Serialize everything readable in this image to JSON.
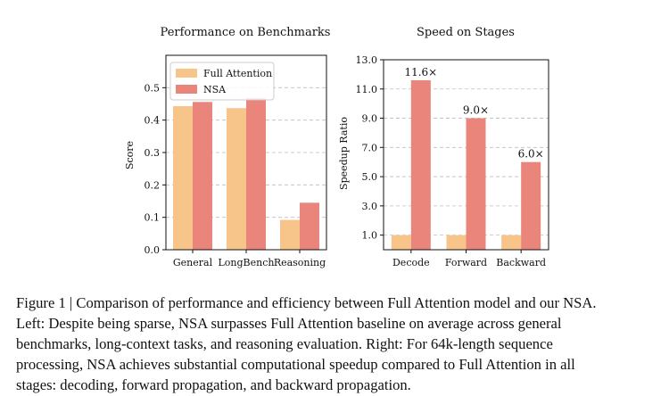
{
  "chart_data": [
    {
      "type": "bar",
      "title": "Performance on Benchmarks",
      "xlabel": "",
      "ylabel": "Score",
      "categories": [
        "General",
        "LongBench",
        "Reasoning"
      ],
      "ylim": [
        0.0,
        0.6
      ],
      "yticks": [
        "0.0",
        "0.1",
        "0.2",
        "0.3",
        "0.4",
        "0.5"
      ],
      "ytick_values": [
        0.0,
        0.1,
        0.2,
        0.3,
        0.4,
        0.5
      ],
      "grid": true,
      "legend_position": "top-left",
      "series": [
        {
          "name": "Full Attention",
          "values": [
            0.443,
            0.437,
            0.092
          ],
          "color": "#F7C48A"
        },
        {
          "name": "NSA",
          "values": [
            0.456,
            0.469,
            0.145
          ],
          "color": "#E9857A"
        }
      ]
    },
    {
      "type": "bar",
      "title": "Speed on Stages",
      "xlabel": "",
      "ylabel": "Speedup Ratio",
      "categories": [
        "Decode",
        "Forward",
        "Backward"
      ],
      "ylim": [
        0.0,
        13.0
      ],
      "yticks": [
        "1.0",
        "3.0",
        "5.0",
        "7.0",
        "9.0",
        "11.0",
        "13.0"
      ],
      "ytick_values": [
        1.0,
        3.0,
        5.0,
        7.0,
        9.0,
        11.0,
        13.0
      ],
      "grid": true,
      "series": [
        {
          "name": "Full Attention",
          "values": [
            1.0,
            1.0,
            1.0
          ],
          "color": "#F7C48A"
        },
        {
          "name": "NSA",
          "values": [
            11.6,
            9.0,
            6.0
          ],
          "color": "#E9857A"
        }
      ],
      "data_labels": [
        "11.6×",
        "9.0×",
        "6.0×"
      ]
    }
  ],
  "caption": {
    "line1": "Figure 1 | Comparison of performance and efficiency between Full Attention model and our NSA.",
    "line2": "Left: Despite being sparse, NSA surpasses Full Attention baseline on average across general",
    "line3": "benchmarks, long-context tasks, and reasoning evaluation.  Right: For 64k-length sequence",
    "line4": "processing, NSA achieves substantial computational speedup compared to Full Attention in all",
    "line5": "stages: decoding, forward propagation, and backward propagation."
  }
}
